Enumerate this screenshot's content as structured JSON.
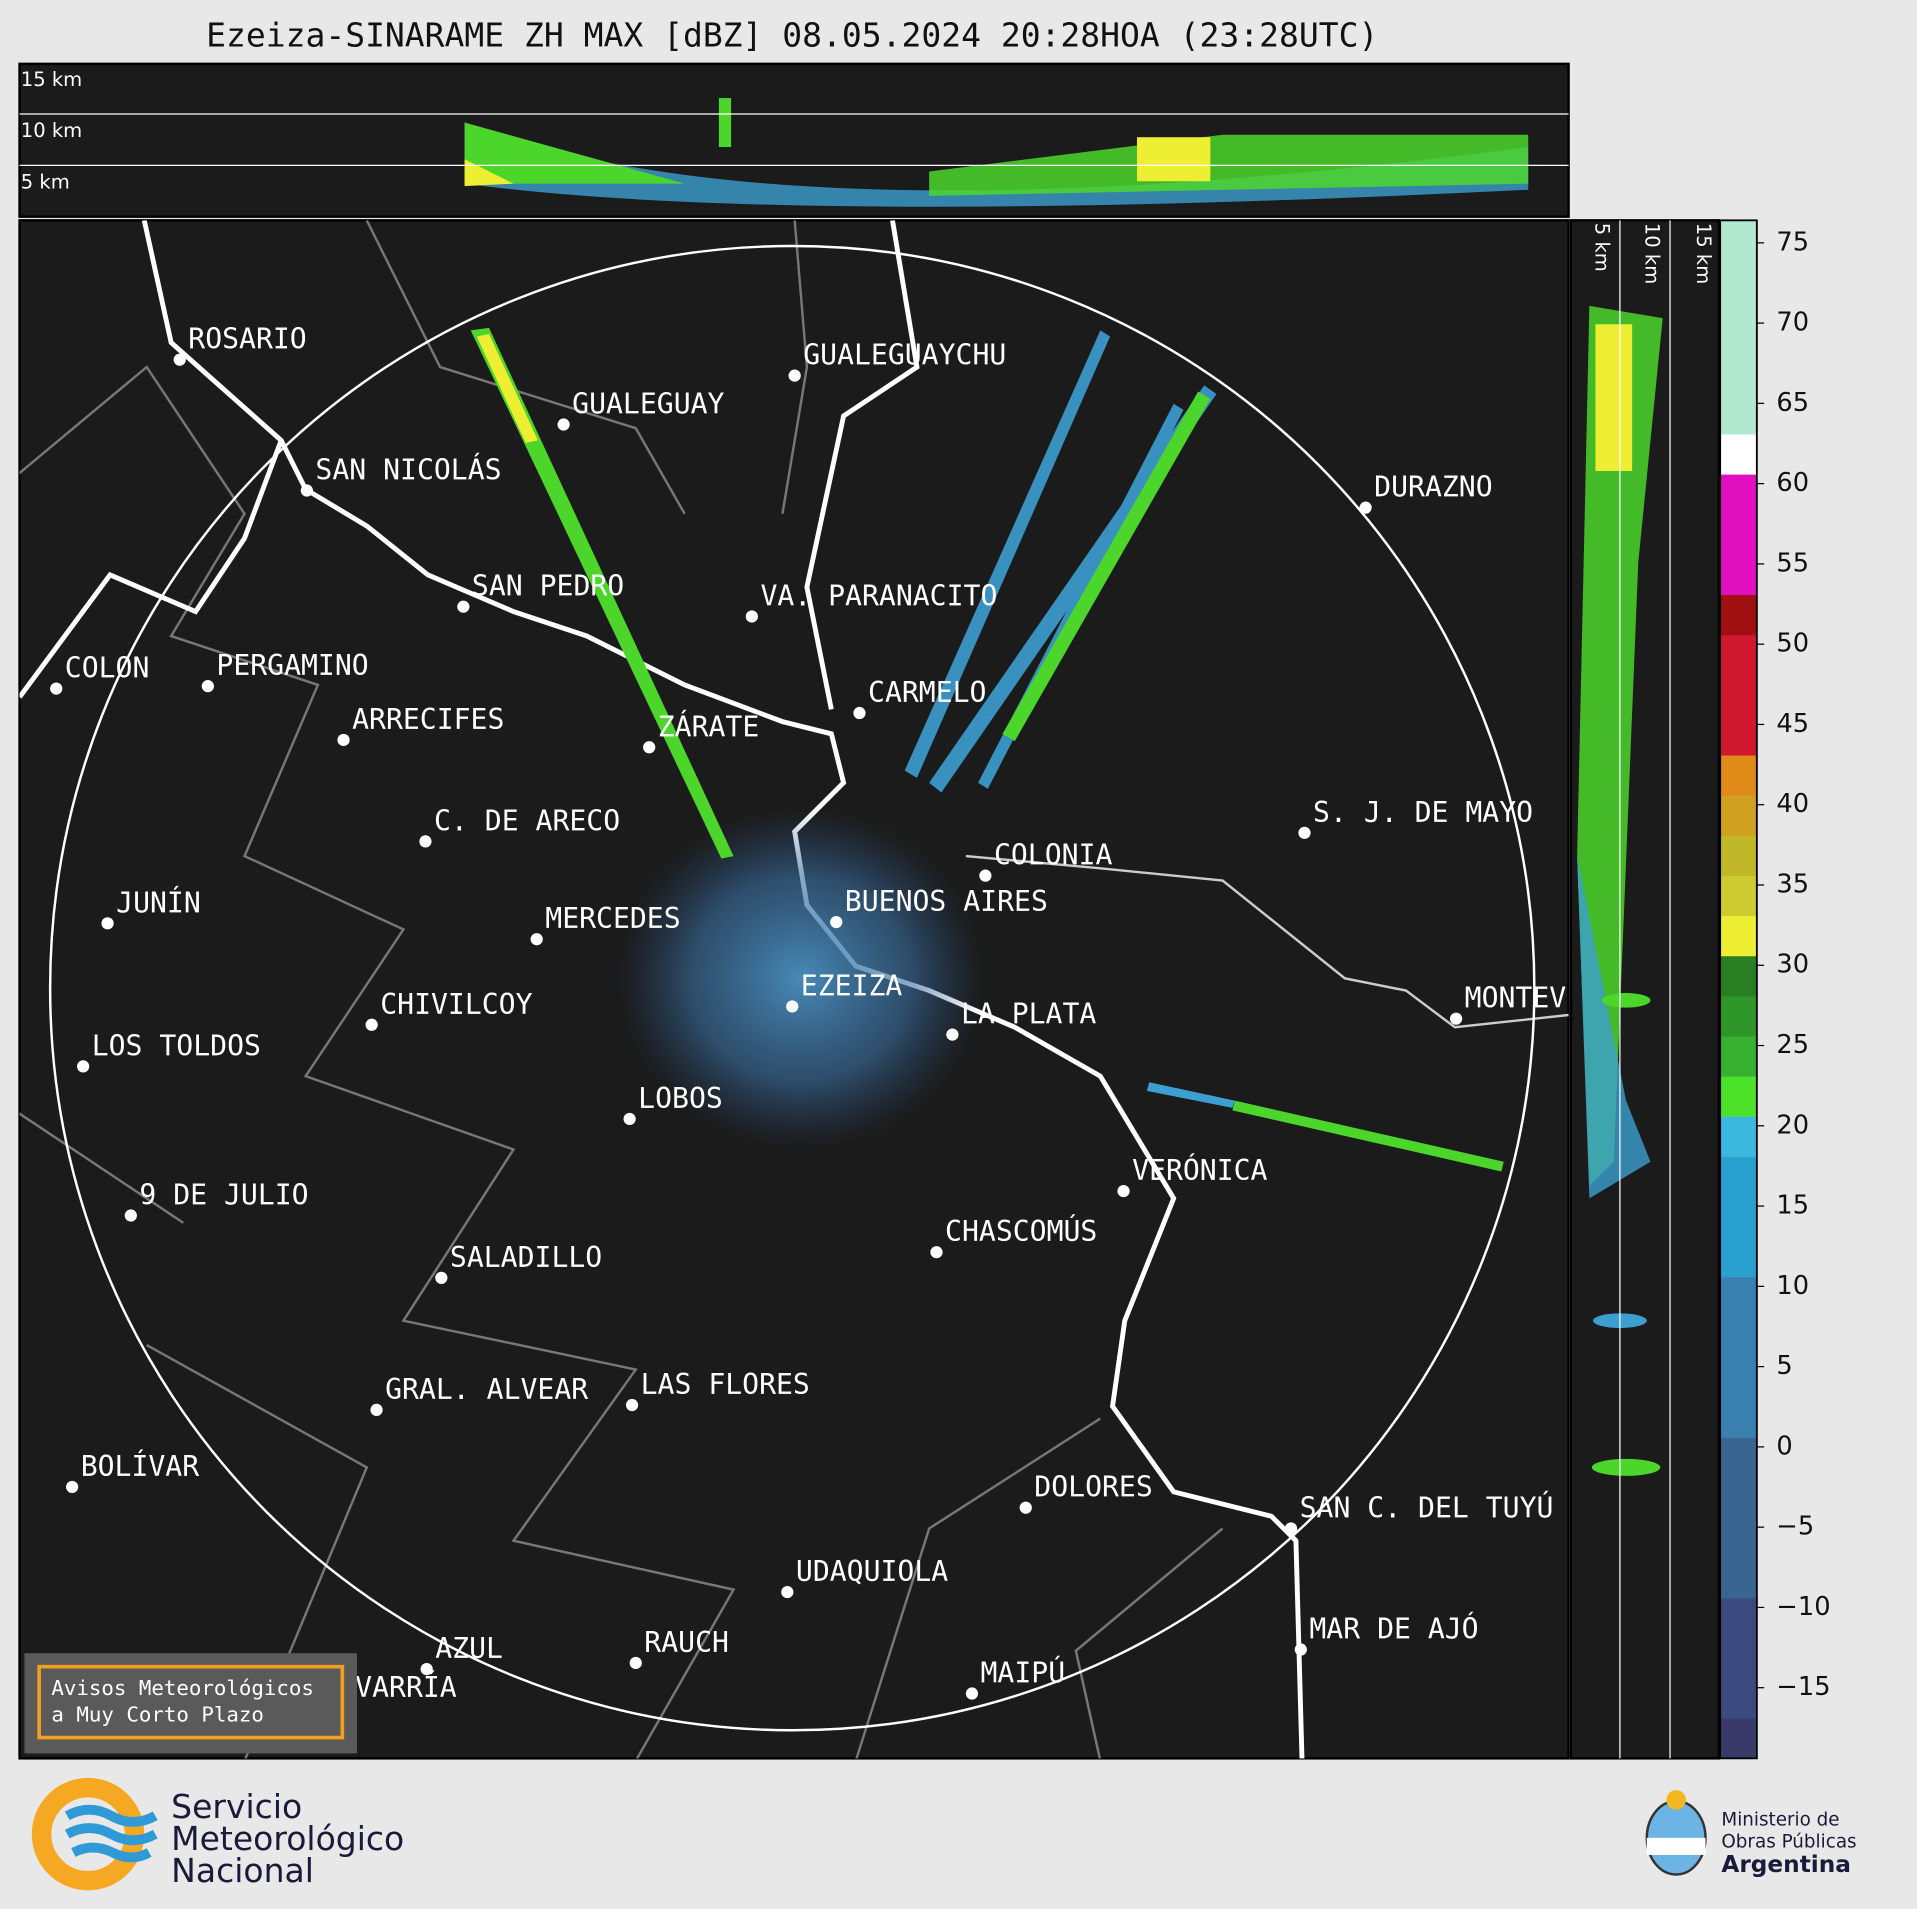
{
  "title": "Ezeiza-SINARAME ZH MAX [dBZ] 08.05.2024 20:28HOA (23:28UTC)",
  "top_panel_labels": [
    "15 km",
    "10 km",
    "5 km"
  ],
  "side_panel_labels": [
    "5 km",
    "10 km",
    "15 km"
  ],
  "cities": [
    "ROSARIO",
    "GUALEGUAY",
    "GUALEGUAYCHU",
    "SAN NICOLÁS",
    "DURAZNO",
    "SAN PEDRO",
    "VA. PARANACITO",
    "COLON",
    "PERGAMINO",
    "ARRECIFES",
    "ZÁRATE",
    "CARMELO",
    "S. J. DE MAYO",
    "C. DE ARECO",
    "COLONIA",
    "JUNÍN",
    "BUENOS AIRES",
    "MERCEDES",
    "EZEIZA",
    "MONTEVIDEO",
    "CHIVILCOY",
    "LA PLATA",
    "LOS TOLDOS",
    "LOBOS",
    "VERÓNICA",
    "9 DE JULIO",
    "CHASCOMÚS",
    "SALADILLO",
    "GRAL. ALVEAR",
    "LAS FLORES",
    "BOLÍVAR",
    "DOLORES",
    "SAN C. DEL TUYÚ",
    "UDAQUIOLA",
    "RAUCH",
    "AZUL",
    "OLAVARRÍA",
    "MAR DE AJÓ",
    "MAIPÚ"
  ],
  "colorbar": {
    "lim": [
      -19.4,
      76.4
    ],
    "ticks": [
      75,
      70,
      65,
      60,
      55,
      50,
      45,
      40,
      35,
      30,
      25,
      20,
      15,
      10,
      5,
      0,
      {
        "value": -5,
        "label": "−5"
      },
      {
        "value": -10,
        "label": "−10"
      },
      {
        "value": -15,
        "label": "−15"
      }
    ]
  },
  "badge": [
    "Avisos Meteorológicos",
    "a Muy Corto Plazo"
  ],
  "logo_left": [
    "Servicio",
    "Meteorológico",
    "Nacional"
  ],
  "logo_right": [
    "Ministerio de",
    "Obras Públicas",
    "Argentina"
  ]
}
